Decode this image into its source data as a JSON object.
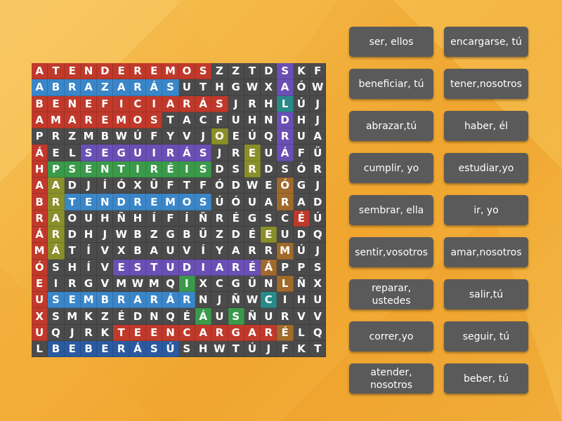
{
  "grid": {
    "rows": [
      "ATENDEREMOSZZTDSKF",
      "ABRAZARÁSUTHGWXAÓW",
      "BENEFICIARÁSJRHLÚJ",
      "AMAREMOSTACFUHNDHJ",
      "PRZMBWÚFYVJOEÚQRUA",
      "ÁELSEGUIRÁSJREUÁFÜ",
      "HPSENTIRÉISDSRDSÓR",
      "AADJÍÓXÜFTFÓDWEÓGJ",
      "BRTENDREMOSÚÓUARAD",
      "RAOUHÑHÍFÍÑRÉGSCÉÚ",
      "ÁRDHJWBZGBÜZDÉEUDQ",
      "MÁTÍVXBAUVÍYARRMÚJ",
      "ÓSHÍVESTUDIARÉÁPPS",
      "EIRGVMWMQIXCGÜNLÑX",
      "USEMBRARÁRNJÑWCIHU",
      "XSMKZÉDNQÉÁUSÑURVV",
      "UQJRKTEENCARGARÉLQ",
      "LBEBERÁSÚSHWTÚJFKT"
    ]
  },
  "cell_colors": {
    "default": "#4b4b4b",
    "red": "#c0392b",
    "blue": "#3a86c8",
    "green": "#3a9a4a",
    "purple": "#6a4fb5",
    "olive": "#8a8f2a",
    "brown": "#a06a2c",
    "teal": "#2a8a8a",
    "darkblue": "#2b5aa0",
    "pink": "#b2437a"
  },
  "words": [
    {
      "row": 0,
      "col": 0,
      "dir": "h",
      "len": 11,
      "color": "red"
    },
    {
      "row": 1,
      "col": 0,
      "dir": "h",
      "len": 9,
      "color": "blue"
    },
    {
      "row": 2,
      "col": 0,
      "dir": "h",
      "len": 12,
      "color": "red"
    },
    {
      "row": 3,
      "col": 0,
      "dir": "h",
      "len": 8,
      "color": "red"
    },
    {
      "row": 5,
      "col": 3,
      "dir": "h",
      "len": 8,
      "color": "purple"
    },
    {
      "row": 6,
      "col": 1,
      "dir": "h",
      "len": 10,
      "color": "green"
    },
    {
      "row": 8,
      "col": 2,
      "dir": "h",
      "len": 9,
      "color": "blue"
    },
    {
      "row": 12,
      "col": 5,
      "dir": "h",
      "len": 9,
      "color": "purple"
    },
    {
      "row": 14,
      "col": 1,
      "dir": "h",
      "len": 9,
      "color": "blue"
    },
    {
      "row": 16,
      "col": 5,
      "dir": "h",
      "len": 11,
      "color": "red"
    },
    {
      "row": 17,
      "col": 1,
      "dir": "h",
      "len": 8,
      "color": "darkblue"
    },
    {
      "row": 0,
      "col": 15,
      "dir": "v",
      "len": 6,
      "color": "purple"
    },
    {
      "row": 2,
      "col": 15,
      "dir": "v",
      "len": 1,
      "color": "teal"
    },
    {
      "row": 4,
      "col": 11,
      "dir": "v",
      "len": 1,
      "color": "olive"
    },
    {
      "row": 5,
      "col": 13,
      "dir": "v",
      "len": 1,
      "color": "olive"
    },
    {
      "row": 6,
      "col": 13,
      "dir": "v",
      "len": 1,
      "color": "olive"
    },
    {
      "row": 7,
      "col": 15,
      "dir": "v",
      "len": 1,
      "color": "brown"
    },
    {
      "row": 8,
      "col": 15,
      "dir": "v",
      "len": 1,
      "color": "brown"
    },
    {
      "row": 9,
      "col": 16,
      "dir": "v",
      "len": 1,
      "color": "red"
    },
    {
      "row": 10,
      "col": 14,
      "dir": "v",
      "len": 1,
      "color": "olive"
    },
    {
      "row": 11,
      "col": 15,
      "dir": "v",
      "len": 1,
      "color": "brown"
    },
    {
      "row": 12,
      "col": 14,
      "dir": "v",
      "len": 1,
      "color": "brown"
    },
    {
      "row": 13,
      "col": 15,
      "dir": "v",
      "len": 1,
      "color": "brown"
    },
    {
      "row": 15,
      "col": 10,
      "dir": "v",
      "len": 1,
      "color": "green"
    },
    {
      "row": 15,
      "col": 12,
      "dir": "v",
      "len": 1,
      "color": "green"
    },
    {
      "row": 16,
      "col": 15,
      "dir": "v",
      "len": 1,
      "color": "brown"
    },
    {
      "row": 5,
      "col": 0,
      "dir": "v",
      "len": 12,
      "color": "red"
    },
    {
      "row": 7,
      "col": 1,
      "dir": "v",
      "len": 5,
      "color": "olive"
    },
    {
      "row": 13,
      "col": 9,
      "dir": "v",
      "len": 1,
      "color": "green"
    },
    {
      "row": 14,
      "col": 14,
      "dir": "v",
      "len": 1,
      "color": "teal"
    }
  ],
  "cards": [
    {
      "label": "ser, ellos"
    },
    {
      "label": "encargarse, tú"
    },
    {
      "label": "beneficiar, tú"
    },
    {
      "label": "tener,nosotros"
    },
    {
      "label": "abrazar,tú"
    },
    {
      "label": "haber, él"
    },
    {
      "label": "cumplir, yo"
    },
    {
      "label": "estudiar,yo"
    },
    {
      "label": "sembrar, ella"
    },
    {
      "label": "ir, yo"
    },
    {
      "label": "sentir,vosotros"
    },
    {
      "label": "amar,nosotros"
    },
    {
      "label": "reparar, ustedes"
    },
    {
      "label": "salir,tú"
    },
    {
      "label": "correr,yo"
    },
    {
      "label": "seguir, tú"
    },
    {
      "label": "atender, nosotros"
    },
    {
      "label": "beber, tú"
    }
  ]
}
